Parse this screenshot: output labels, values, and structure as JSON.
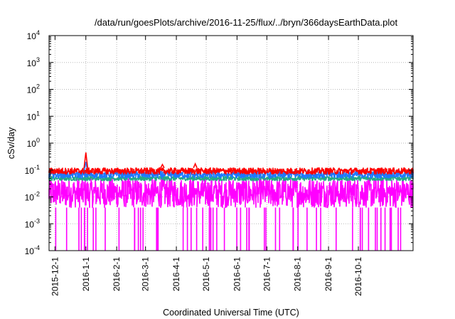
{
  "chart_data": {
    "type": "line",
    "title": "/data/run/goesPlots/archive/2016-11-25/flux/../bryn/366daysEarthData.plot",
    "xlabel": "Coordinated Universal Time (UTC)",
    "ylabel": "cSv/day",
    "x_range": [
      "2015-11-25",
      "2016-11-25"
    ],
    "y_scale": "log",
    "ylim": [
      0.0001,
      10000
    ],
    "grid": true,
    "x_tick_labels": [
      "2015-12-1",
      "2016-1-1",
      "2016-2-1",
      "2016-3-1",
      "2016-4-1",
      "2016-5-1",
      "2016-6-1",
      "2016-7-1",
      "2016-8-1",
      "2016-9-1",
      "2016-10-1"
    ],
    "x_tick_dates": [
      "2015-12-01",
      "2016-01-01",
      "2016-02-01",
      "2016-03-01",
      "2016-04-01",
      "2016-05-01",
      "2016-06-01",
      "2016-07-01",
      "2016-08-01",
      "2016-09-01",
      "2016-10-01"
    ],
    "y_tick_labels": [
      {
        "value": 0.0001,
        "base": "10",
        "exp": "-4"
      },
      {
        "value": 0.001,
        "base": "10",
        "exp": "-3"
      },
      {
        "value": 0.01,
        "base": "10",
        "exp": "-2"
      },
      {
        "value": 0.1,
        "base": "10",
        "exp": "-1"
      },
      {
        "value": 1,
        "base": "10",
        "exp": "0"
      },
      {
        "value": 10,
        "base": "10",
        "exp": "1"
      },
      {
        "value": 100,
        "base": "10",
        "exp": "2"
      },
      {
        "value": 1000,
        "base": "10",
        "exp": "3"
      },
      {
        "value": 10000,
        "base": "10",
        "exp": "4"
      }
    ],
    "series": [
      {
        "color": "#ff0000",
        "typical_range": [
          0.07,
          0.12
        ],
        "spikes": [
          {
            "x": "2016-01-01",
            "y": 0.45
          },
          {
            "x": "2016-03-18",
            "y": 0.16
          },
          {
            "x": "2016-04-20",
            "y": 0.17
          }
        ]
      },
      {
        "color": "#1e78ff",
        "typical_range": [
          0.05,
          0.09
        ],
        "spikes": [
          {
            "x": "2016-01-01",
            "y": 0.2
          }
        ]
      },
      {
        "color": "#22aa88",
        "typical_range": [
          0.04,
          0.06
        ]
      },
      {
        "color": "#ff00ff",
        "typical_range": [
          0.004,
          0.05
        ],
        "dropouts_to": 0.0001
      }
    ]
  }
}
